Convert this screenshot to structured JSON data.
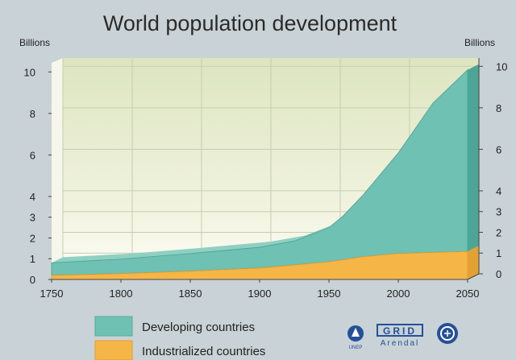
{
  "chart_data": {
    "type": "area",
    "title": "World population development",
    "ylabel_left": "Billions",
    "ylabel_right": "Billions",
    "xlim": [
      1750,
      2050
    ],
    "ylim": [
      0,
      10.4
    ],
    "x_ticks": [
      1750,
      1800,
      1850,
      1900,
      1950,
      2000,
      2050
    ],
    "y_ticks_left": [
      0,
      1,
      2,
      3,
      4,
      6,
      8,
      10
    ],
    "y_ticks_right": [
      0,
      1,
      2,
      3,
      4,
      6,
      8,
      10
    ],
    "grid": true,
    "stacked": true,
    "legend_position": "bottom-left",
    "x": [
      1750,
      1800,
      1850,
      1900,
      1925,
      1950,
      1960,
      1975,
      2000,
      2025,
      2050
    ],
    "series": [
      {
        "name": "Industrialized countries",
        "color": "#f5b547",
        "values": [
          0.2,
          0.28,
          0.4,
          0.55,
          0.7,
          0.85,
          0.95,
          1.1,
          1.25,
          1.3,
          1.35
        ]
      },
      {
        "name": "Developing countries",
        "color": "#6ec1b3",
        "values": [
          0.6,
          0.7,
          0.85,
          1.0,
          1.15,
          1.65,
          2.1,
          3.0,
          4.85,
          7.2,
          8.75
        ]
      }
    ]
  },
  "logos": {
    "grid": "GRID",
    "arendal": "Arendal"
  },
  "colors": {
    "background": "#c9d2d6",
    "plot_bg_top": "#dfe6c3",
    "plot_bg_bottom": "#fbfbf3",
    "developing": "#6ec1b3",
    "industrialized": "#f5b547"
  }
}
